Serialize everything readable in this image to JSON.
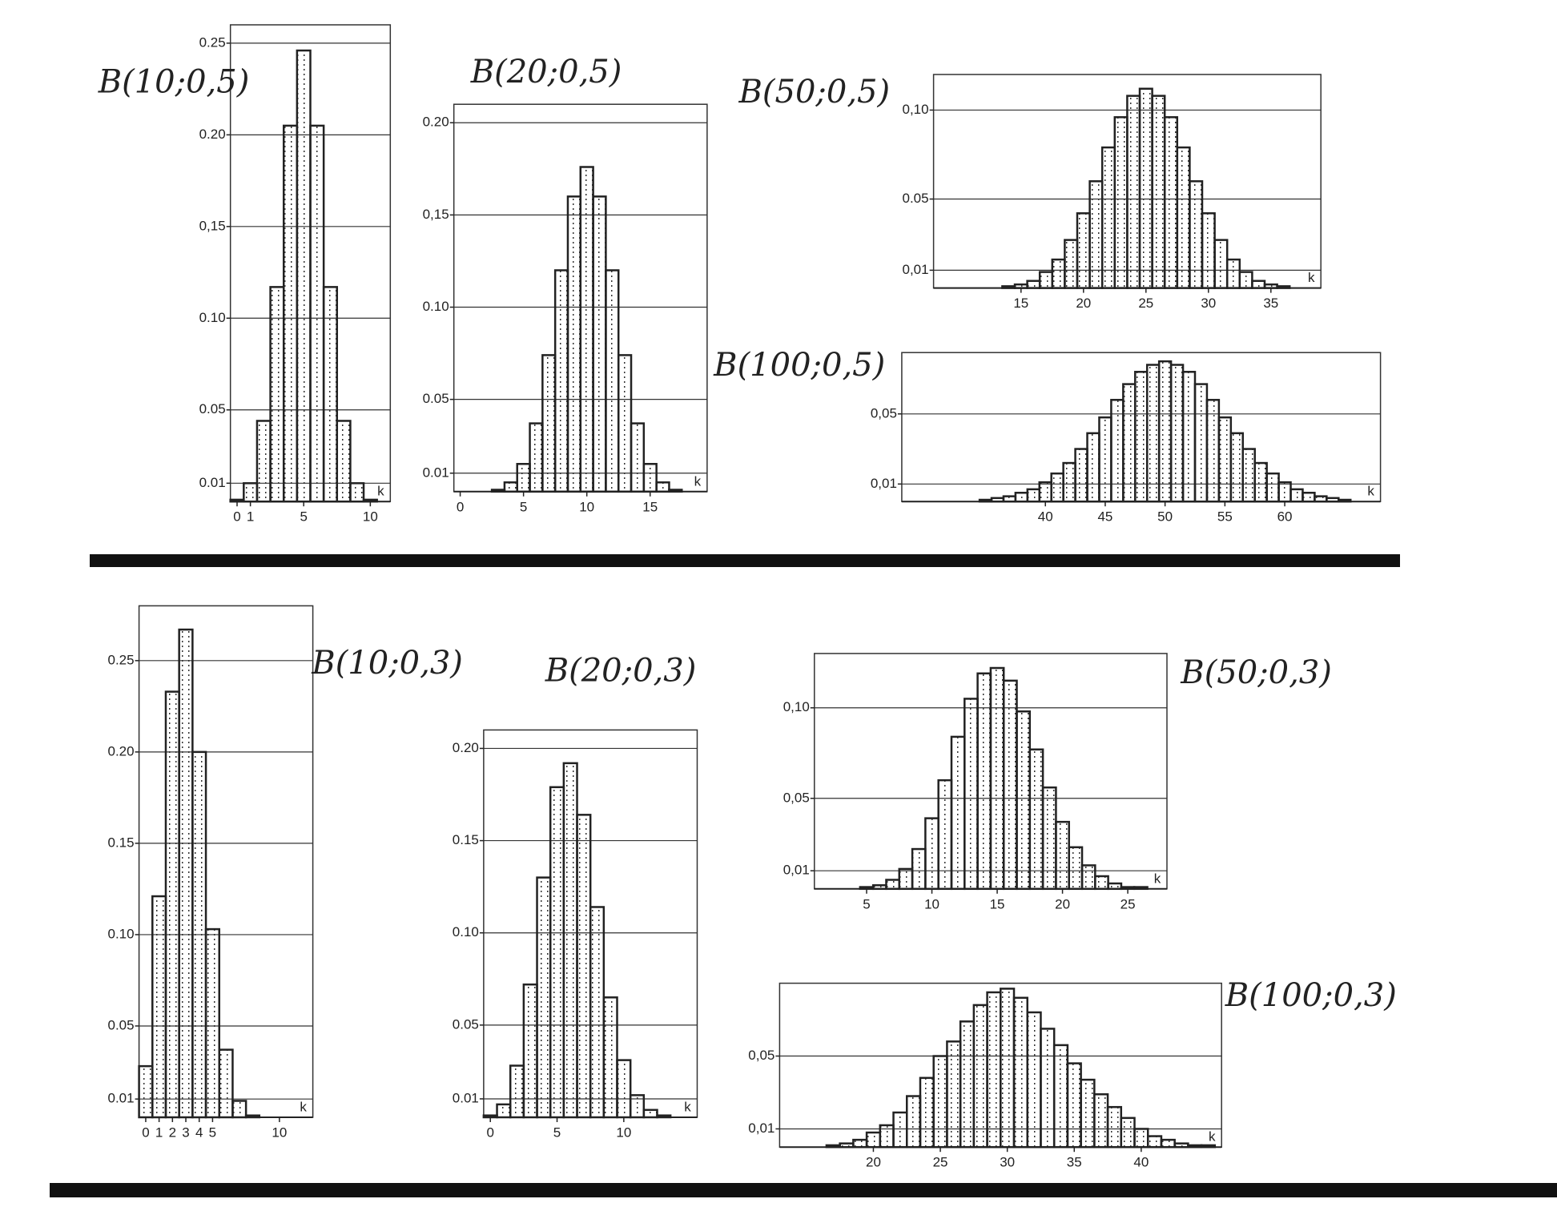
{
  "chart_data": [
    {
      "type": "bar",
      "title": "B(10;0,5)",
      "x_label": "k",
      "x": [
        0,
        1,
        2,
        3,
        4,
        5,
        6,
        7,
        8,
        9,
        10
      ],
      "values": [
        0.001,
        0.01,
        0.044,
        0.117,
        0.205,
        0.246,
        0.205,
        0.117,
        0.044,
        0.01,
        0.001
      ],
      "xlim": [
        -0.5,
        11.5
      ],
      "xticks": [
        0,
        1,
        5,
        10
      ],
      "ylim": [
        0,
        0.26
      ],
      "yticks": [
        {
          "value": 0.01,
          "label": "0.01"
        },
        {
          "value": 0.05,
          "label": "0.05"
        },
        {
          "value": 0.1,
          "label": "0.10"
        },
        {
          "value": 0.15,
          "label": "0,15"
        },
        {
          "value": 0.2,
          "label": "0.20"
        },
        {
          "value": 0.25,
          "label": "0.25"
        }
      ],
      "grid": true,
      "color": "#222"
    },
    {
      "type": "bar",
      "title": "B(20;0,5)",
      "x_label": "k",
      "x": [
        0,
        1,
        2,
        3,
        4,
        5,
        6,
        7,
        8,
        9,
        10,
        11,
        12,
        13,
        14,
        15,
        16,
        17,
        18,
        19,
        20
      ],
      "values": [
        0,
        0,
        0,
        0.001,
        0.005,
        0.015,
        0.037,
        0.074,
        0.12,
        0.16,
        0.176,
        0.16,
        0.12,
        0.074,
        0.037,
        0.015,
        0.005,
        0.001,
        0,
        0,
        0
      ],
      "xlim": [
        -0.5,
        19.5
      ],
      "xticks": [
        0,
        5,
        10,
        15
      ],
      "ylim": [
        0,
        0.21
      ],
      "yticks": [
        {
          "value": 0.01,
          "label": "0.01"
        },
        {
          "value": 0.05,
          "label": "0.05"
        },
        {
          "value": 0.1,
          "label": "0.10"
        },
        {
          "value": 0.15,
          "label": "0,15"
        },
        {
          "value": 0.2,
          "label": "0.20"
        }
      ],
      "grid": true,
      "color": "#222"
    },
    {
      "type": "bar",
      "title": "B(50;0,5)",
      "x_label": "k",
      "x": [
        12,
        13,
        14,
        15,
        16,
        17,
        18,
        19,
        20,
        21,
        22,
        23,
        24,
        25,
        26,
        27,
        28,
        29,
        30,
        31,
        32,
        33,
        34,
        35,
        36,
        37,
        38
      ],
      "values": [
        0,
        0,
        0.001,
        0.002,
        0.004,
        0.009,
        0.016,
        0.027,
        0.042,
        0.06,
        0.079,
        0.096,
        0.108,
        0.112,
        0.108,
        0.096,
        0.079,
        0.06,
        0.042,
        0.027,
        0.016,
        0.009,
        0.004,
        0.002,
        0.001,
        0,
        0
      ],
      "xlim": [
        8,
        39
      ],
      "xticks": [
        15,
        20,
        25,
        30,
        35
      ],
      "ylim": [
        0,
        0.12
      ],
      "yticks": [
        {
          "value": 0.01,
          "label": "0,01"
        },
        {
          "value": 0.05,
          "label": "0.05"
        },
        {
          "value": 0.1,
          "label": "0,10"
        }
      ],
      "grid": true,
      "color": "#222"
    },
    {
      "type": "bar",
      "title": "B(100;0,5)",
      "x_label": "k",
      "x": [
        35,
        36,
        37,
        38,
        39,
        40,
        41,
        42,
        43,
        44,
        45,
        46,
        47,
        48,
        49,
        50,
        51,
        52,
        53,
        54,
        55,
        56,
        57,
        58,
        59,
        60,
        61,
        62,
        63,
        64,
        65
      ],
      "values": [
        0.001,
        0.002,
        0.003,
        0.005,
        0.007,
        0.011,
        0.016,
        0.022,
        0.03,
        0.039,
        0.048,
        0.058,
        0.067,
        0.074,
        0.078,
        0.08,
        0.078,
        0.074,
        0.067,
        0.058,
        0.048,
        0.039,
        0.03,
        0.022,
        0.016,
        0.011,
        0.007,
        0.005,
        0.003,
        0.002,
        0.001
      ],
      "xlim": [
        28,
        68
      ],
      "xticks": [
        40,
        45,
        50,
        55,
        60
      ],
      "ylim": [
        0,
        0.085
      ],
      "yticks": [
        {
          "value": 0.01,
          "label": "0,01"
        },
        {
          "value": 0.05,
          "label": "0,05"
        }
      ],
      "grid": true,
      "color": "#222"
    },
    {
      "type": "bar",
      "title": "B(10;0,3)",
      "x_label": "k",
      "x": [
        0,
        1,
        2,
        3,
        4,
        5,
        6,
        7,
        8,
        9,
        10
      ],
      "values": [
        0.028,
        0.121,
        0.233,
        0.267,
        0.2,
        0.103,
        0.037,
        0.009,
        0.001,
        0,
        0
      ],
      "xlim": [
        -0.5,
        12.5
      ],
      "xticks": [
        0,
        1,
        2,
        3,
        4,
        5,
        10
      ],
      "ylim": [
        0,
        0.28
      ],
      "yticks": [
        {
          "value": 0.01,
          "label": "0.01"
        },
        {
          "value": 0.05,
          "label": "0.05"
        },
        {
          "value": 0.1,
          "label": "0.10"
        },
        {
          "value": 0.15,
          "label": "0.15"
        },
        {
          "value": 0.2,
          "label": "0.20"
        },
        {
          "value": 0.25,
          "label": "0.25"
        }
      ],
      "grid": true,
      "color": "#222"
    },
    {
      "type": "bar",
      "title": "B(20;0,3)",
      "x_label": "k",
      "x": [
        0,
        1,
        2,
        3,
        4,
        5,
        6,
        7,
        8,
        9,
        10,
        11,
        12,
        13,
        14
      ],
      "values": [
        0.001,
        0.007,
        0.028,
        0.072,
        0.13,
        0.179,
        0.192,
        0.164,
        0.114,
        0.065,
        0.031,
        0.012,
        0.004,
        0.001,
        0
      ],
      "xlim": [
        -0.5,
        15.5
      ],
      "xticks": [
        0,
        5,
        10
      ],
      "ylim": [
        0,
        0.21
      ],
      "yticks": [
        {
          "value": 0.01,
          "label": "0.01"
        },
        {
          "value": 0.05,
          "label": "0.05"
        },
        {
          "value": 0.1,
          "label": "0.10"
        },
        {
          "value": 0.15,
          "label": "0.15"
        },
        {
          "value": 0.2,
          "label": "0.20"
        }
      ],
      "grid": true,
      "color": "#222"
    },
    {
      "type": "bar",
      "title": "B(50;0,3)",
      "x_label": "k",
      "x": [
        4,
        5,
        6,
        7,
        8,
        9,
        10,
        11,
        12,
        13,
        14,
        15,
        16,
        17,
        18,
        19,
        20,
        21,
        22,
        23,
        24,
        25,
        26
      ],
      "values": [
        0,
        0.001,
        0.002,
        0.005,
        0.011,
        0.022,
        0.039,
        0.06,
        0.084,
        0.105,
        0.119,
        0.122,
        0.115,
        0.098,
        0.077,
        0.056,
        0.037,
        0.023,
        0.013,
        0.007,
        0.003,
        0.001,
        0.001
      ],
      "xlim": [
        1,
        28
      ],
      "xticks": [
        5,
        10,
        15,
        20,
        25
      ],
      "ylim": [
        0,
        0.13
      ],
      "yticks": [
        {
          "value": 0.01,
          "label": "0,01"
        },
        {
          "value": 0.05,
          "label": "0,05"
        },
        {
          "value": 0.1,
          "label": "0,10"
        }
      ],
      "grid": true,
      "color": "#222"
    },
    {
      "type": "bar",
      "title": "B(100;0,3)",
      "x_label": "k",
      "x": [
        16,
        17,
        18,
        19,
        20,
        21,
        22,
        23,
        24,
        25,
        26,
        27,
        28,
        29,
        30,
        31,
        32,
        33,
        34,
        35,
        36,
        37,
        38,
        39,
        40,
        41,
        42,
        43,
        44,
        45
      ],
      "values": [
        0,
        0.001,
        0.002,
        0.004,
        0.008,
        0.012,
        0.019,
        0.028,
        0.038,
        0.05,
        0.058,
        0.069,
        0.078,
        0.085,
        0.087,
        0.082,
        0.074,
        0.065,
        0.056,
        0.046,
        0.037,
        0.029,
        0.022,
        0.016,
        0.01,
        0.006,
        0.004,
        0.002,
        0.001,
        0.001
      ],
      "xlim": [
        13,
        46
      ],
      "xticks": [
        20,
        25,
        30,
        35,
        40
      ],
      "ylim": [
        0,
        0.09
      ],
      "yticks": [
        {
          "value": 0.01,
          "label": "0,01"
        },
        {
          "value": 0.05,
          "label": "0,05"
        }
      ],
      "grid": true,
      "color": "#222"
    }
  ]
}
